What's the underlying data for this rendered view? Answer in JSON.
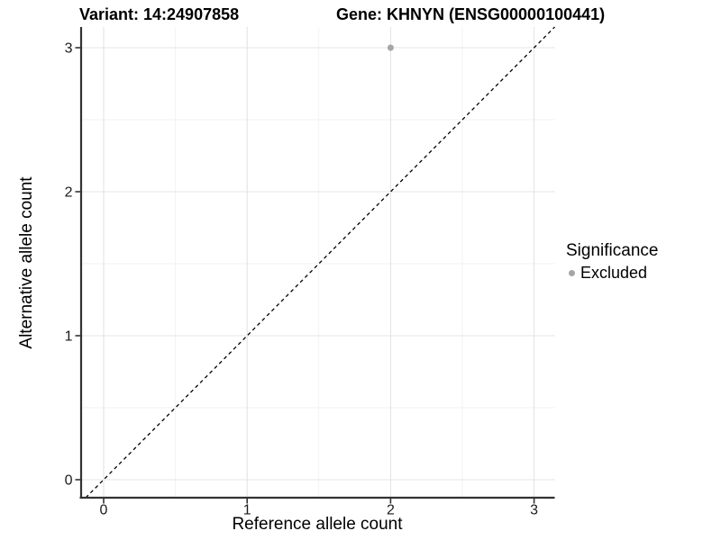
{
  "header": {
    "variant_title": "Variant: 14:24907858",
    "gene_title": "Gene: KHNYN (ENSG00000100441)"
  },
  "axes": {
    "x_title": "Reference allele count",
    "y_title": "Alternative allele count"
  },
  "legend": {
    "title": "Significance",
    "items": [
      {
        "label": "Excluded",
        "color": "#a6a6a6"
      }
    ]
  },
  "chart_data": {
    "type": "scatter",
    "xlabel": "Reference allele count",
    "ylabel": "Alternative allele count",
    "xlim": [
      -0.16,
      3.15
    ],
    "ylim": [
      -0.13,
      3.14
    ],
    "x_ticks": [
      0,
      1,
      2,
      3
    ],
    "y_ticks": [
      0,
      1,
      2,
      3
    ],
    "x_minor_ticks": [
      0.5,
      1.5,
      2.5
    ],
    "y_minor_ticks": [
      0.5,
      1.5,
      2.5
    ],
    "grid": true,
    "legend_position": "right",
    "series": [
      {
        "name": "Excluded",
        "color": "#a6a6a6",
        "points": [
          [
            2,
            3
          ]
        ]
      }
    ],
    "reference_line": {
      "slope": 1,
      "intercept": 0,
      "linetype": "dashed",
      "color": "#000000"
    }
  },
  "colors": {
    "grid_major": "#e4e4e4",
    "grid_minor": "#f2f2f2",
    "axis": "#333333",
    "tick_text": "#1a1a1a"
  }
}
